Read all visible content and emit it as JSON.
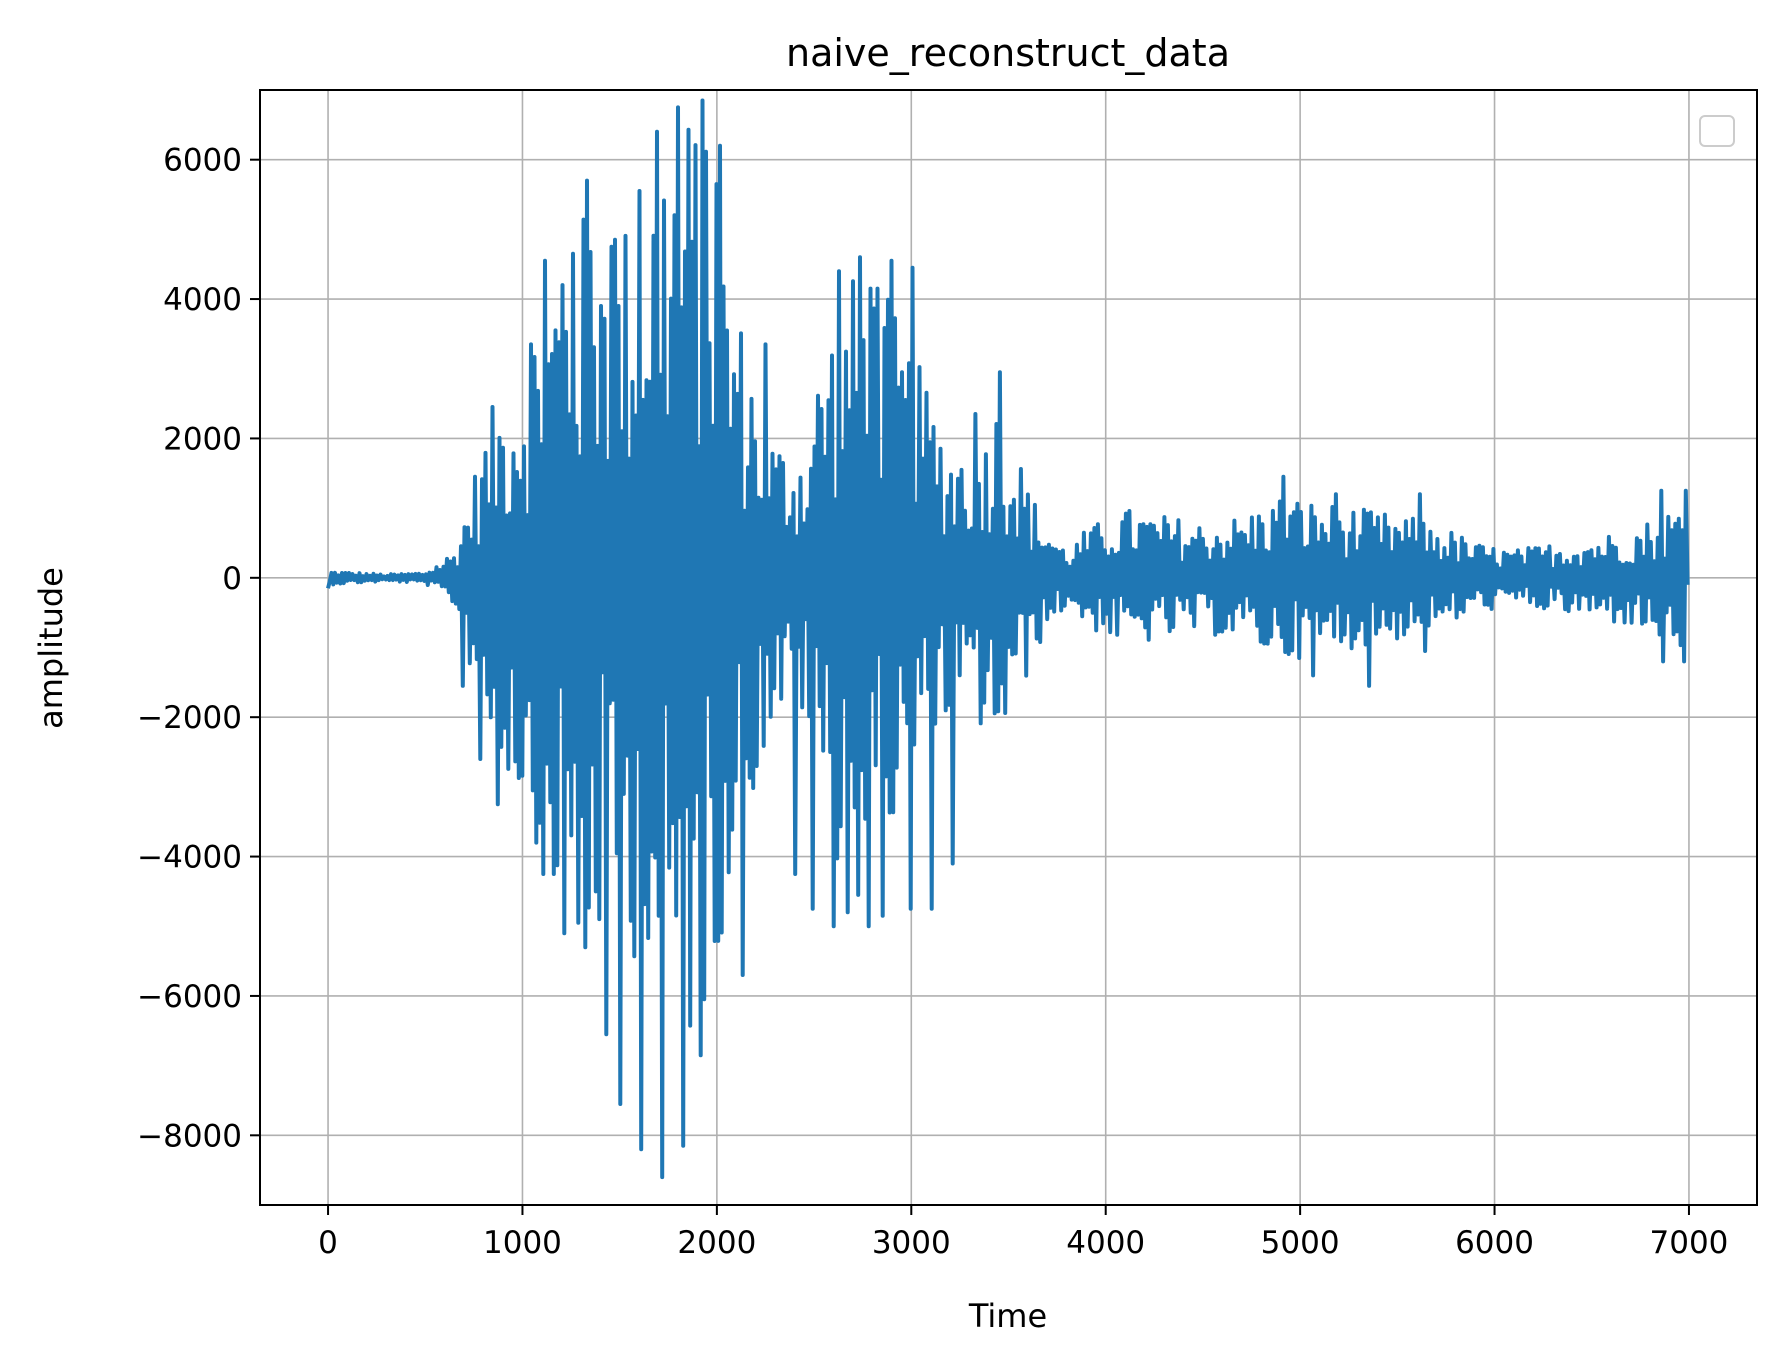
{
  "chart_data": {
    "type": "line",
    "title": "naive_reconstruct_data",
    "xlabel": "Time",
    "ylabel": "amplitude",
    "xlim": [
      -350,
      7350
    ],
    "ylim": [
      -9000,
      7000
    ],
    "xticks": [
      0,
      1000,
      2000,
      3000,
      4000,
      5000,
      6000,
      7000
    ],
    "yticks": [
      -8000,
      -6000,
      -4000,
      -2000,
      0,
      2000,
      4000,
      6000
    ],
    "ytick_labels": [
      "−8000",
      "−6000",
      "−4000",
      "−2000",
      "0",
      "2000",
      "4000",
      "6000"
    ],
    "grid": true,
    "legend": {
      "position": "top-right",
      "entries": []
    },
    "series": [
      {
        "color": "#1f77b4",
        "envelope": [
          [
            0,
            100
          ],
          [
            300,
            50
          ],
          [
            500,
            80
          ],
          [
            650,
            400
          ],
          [
            750,
            1500
          ],
          [
            850,
            2500
          ],
          [
            950,
            3000
          ],
          [
            1100,
            4000
          ],
          [
            1200,
            4500
          ],
          [
            1350,
            5500
          ],
          [
            1500,
            5000
          ],
          [
            1650,
            6000
          ],
          [
            1750,
            6700
          ],
          [
            1900,
            6800
          ],
          [
            2000,
            5500
          ],
          [
            2100,
            4000
          ],
          [
            2200,
            3000
          ],
          [
            2300,
            2000
          ],
          [
            2450,
            2000
          ],
          [
            2550,
            3500
          ],
          [
            2650,
            4300
          ],
          [
            2750,
            4400
          ],
          [
            2850,
            4300
          ],
          [
            2950,
            3500
          ],
          [
            3050,
            3000
          ],
          [
            3200,
            2000
          ],
          [
            3350,
            2200
          ],
          [
            3450,
            2600
          ],
          [
            3550,
            1800
          ],
          [
            3650,
            1000
          ],
          [
            3800,
            400
          ],
          [
            3900,
            700
          ],
          [
            4100,
            1000
          ],
          [
            4300,
            900
          ],
          [
            4500,
            800
          ],
          [
            4700,
            900
          ],
          [
            4900,
            1200
          ],
          [
            5100,
            1100
          ],
          [
            5300,
            1000
          ],
          [
            5500,
            900
          ],
          [
            5700,
            800
          ],
          [
            5900,
            500
          ],
          [
            6100,
            400
          ],
          [
            6300,
            500
          ],
          [
            6500,
            600
          ],
          [
            6700,
            700
          ],
          [
            6900,
            1000
          ],
          [
            7000,
            1100
          ]
        ],
        "peaks": [
          [
            1040,
            3350
          ],
          [
            1110,
            4550
          ],
          [
            1170,
            3550
          ],
          [
            1215,
            4200
          ],
          [
            1260,
            4650
          ],
          [
            1330,
            5700
          ],
          [
            1400,
            3900
          ],
          [
            1450,
            4750
          ],
          [
            1480,
            4850
          ],
          [
            1610,
            5550
          ],
          [
            1690,
            6400
          ],
          [
            1800,
            6750
          ],
          [
            1920,
            6850
          ],
          [
            1990,
            5650
          ],
          [
            2010,
            6200
          ],
          [
            2250,
            3350
          ],
          [
            2620,
            4400
          ],
          [
            2730,
            4600
          ],
          [
            2790,
            4150
          ],
          [
            2830,
            4150
          ],
          [
            2900,
            4550
          ],
          [
            3010,
            4450
          ],
          [
            3330,
            2350
          ],
          [
            3450,
            2950
          ],
          [
            4910,
            1450
          ],
          [
            5190,
            1200
          ],
          [
            5610,
            1200
          ],
          [
            6850,
            1250
          ],
          [
            6980,
            1250
          ],
          [
            700,
            -1550
          ],
          [
            790,
            -2600
          ],
          [
            880,
            -3250
          ],
          [
            1060,
            -3050
          ],
          [
            1110,
            -4250
          ],
          [
            1160,
            -4250
          ],
          [
            1210,
            -5100
          ],
          [
            1290,
            -4950
          ],
          [
            1320,
            -5300
          ],
          [
            1380,
            -4500
          ],
          [
            1430,
            -6550
          ],
          [
            1510,
            -7550
          ],
          [
            1610,
            -8200
          ],
          [
            1720,
            -8600
          ],
          [
            1820,
            -8150
          ],
          [
            1910,
            -6850
          ],
          [
            2140,
            -5700
          ],
          [
            2400,
            -4250
          ],
          [
            2500,
            -4750
          ],
          [
            2600,
            -5000
          ],
          [
            2680,
            -4800
          ],
          [
            2720,
            -4550
          ],
          [
            2790,
            -5000
          ],
          [
            2850,
            -4850
          ],
          [
            2990,
            -4750
          ],
          [
            3110,
            -4750
          ],
          [
            3210,
            -4100
          ],
          [
            5060,
            -1400
          ],
          [
            5360,
            -1550
          ],
          [
            5650,
            -1050
          ],
          [
            6860,
            -1200
          ],
          [
            6980,
            -1200
          ]
        ]
      }
    ]
  }
}
